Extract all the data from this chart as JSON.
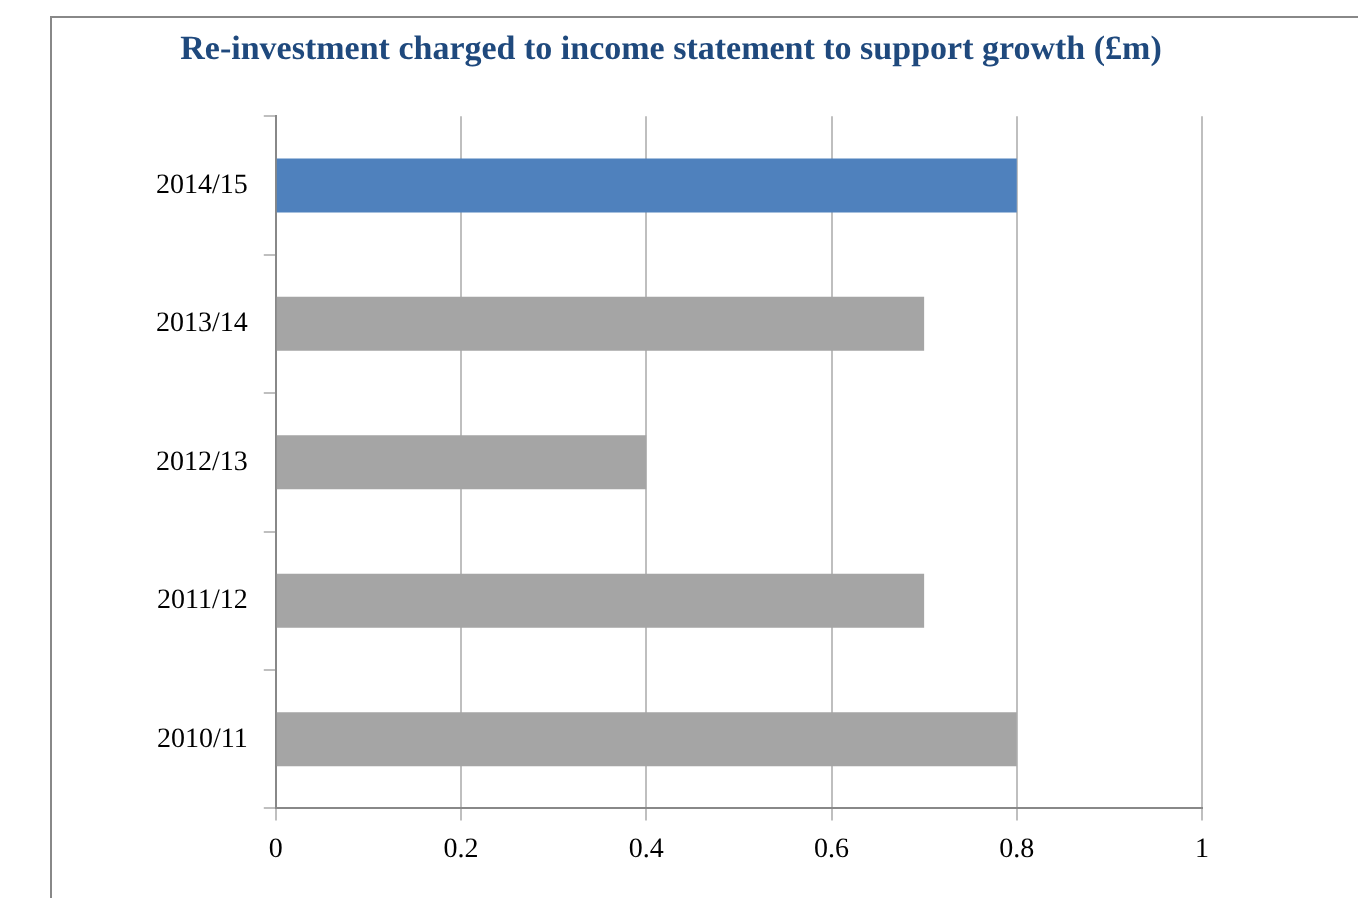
{
  "chart_data": {
    "type": "bar",
    "orientation": "horizontal",
    "title": "Re-investment charged to income statement to support growth (£m)",
    "categories": [
      "2014/15",
      "2013/14",
      "2012/13",
      "2011/12",
      "2010/11"
    ],
    "values": [
      0.8,
      0.7,
      0.4,
      0.7,
      0.8
    ],
    "colors": [
      "#4f81bd",
      "#a5a5a5",
      "#a5a5a5",
      "#a5a5a5",
      "#a5a5a5"
    ],
    "xlim": [
      0,
      1
    ],
    "xticks": [
      0,
      0.2,
      0.4,
      0.6,
      0.8,
      1
    ],
    "grid": "x",
    "legend": false
  }
}
